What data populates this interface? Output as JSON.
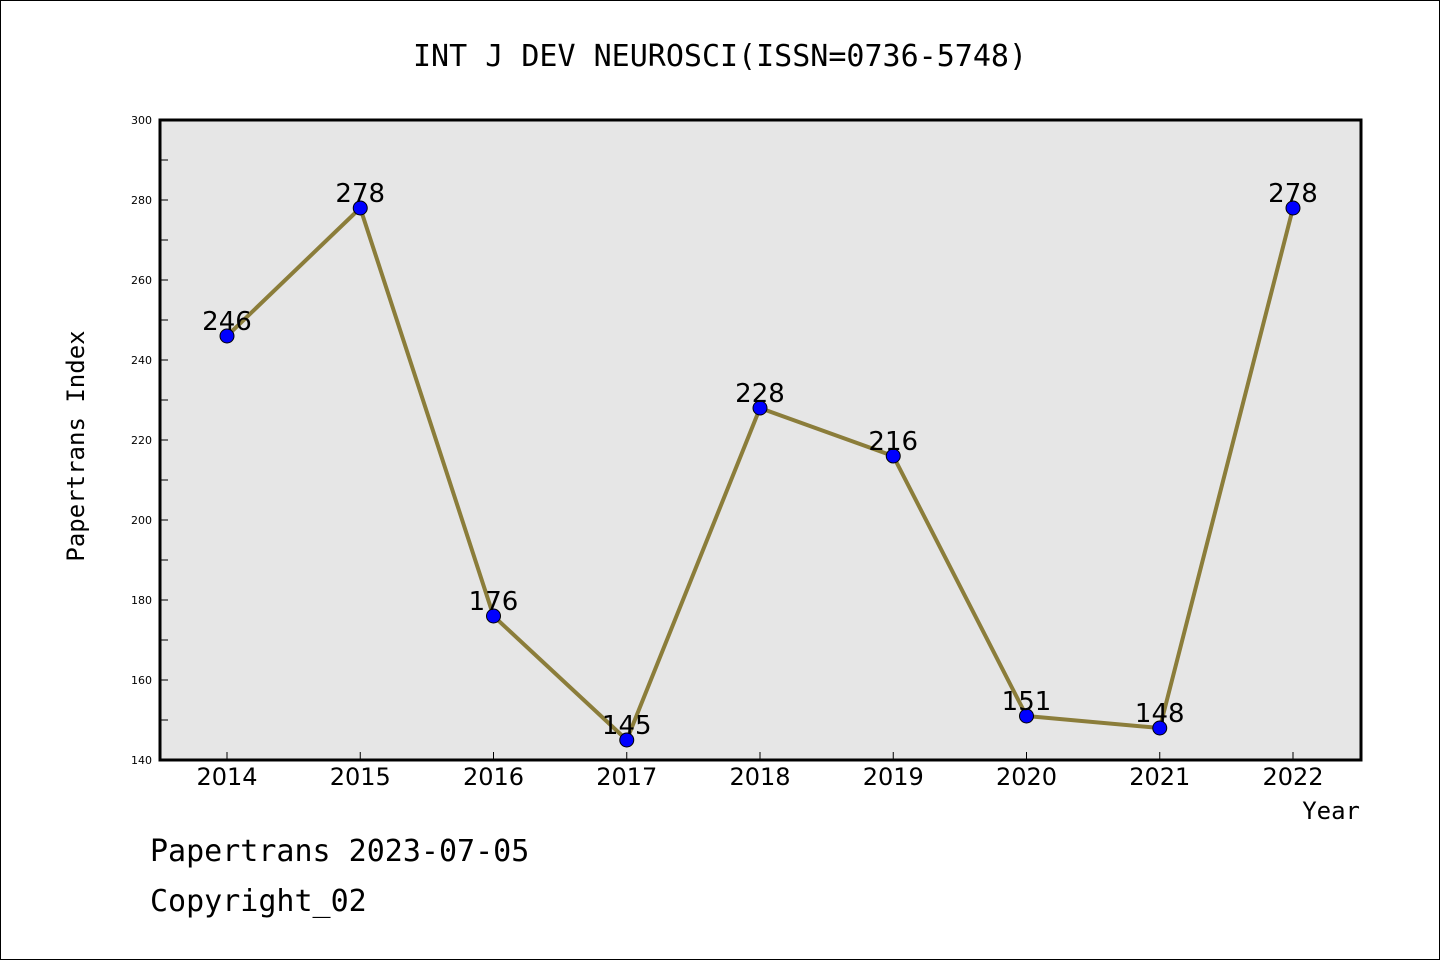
{
  "chart_data": {
    "type": "line",
    "title": "INT J DEV NEUROSCI(ISSN=0736-5748)",
    "xlabel": "Year",
    "ylabel": "Papertrans Index",
    "x": [
      "2014",
      "2015",
      "2016",
      "2017",
      "2018",
      "2019",
      "2020",
      "2021",
      "2022"
    ],
    "values": [
      246,
      278,
      176,
      145,
      228,
      216,
      151,
      148,
      278
    ],
    "ylim": [
      140,
      300
    ],
    "yticks": [
      "140",
      "160",
      "180",
      "200",
      "220",
      "240",
      "260",
      "280",
      "300"
    ],
    "grid": false,
    "colors": {
      "line": "#8B7D3A",
      "marker": "#0000FF",
      "plot_background": "#E6E6E6"
    }
  },
  "footer": {
    "line1": "Papertrans 2023-07-05",
    "line2": "Copyright_02"
  }
}
